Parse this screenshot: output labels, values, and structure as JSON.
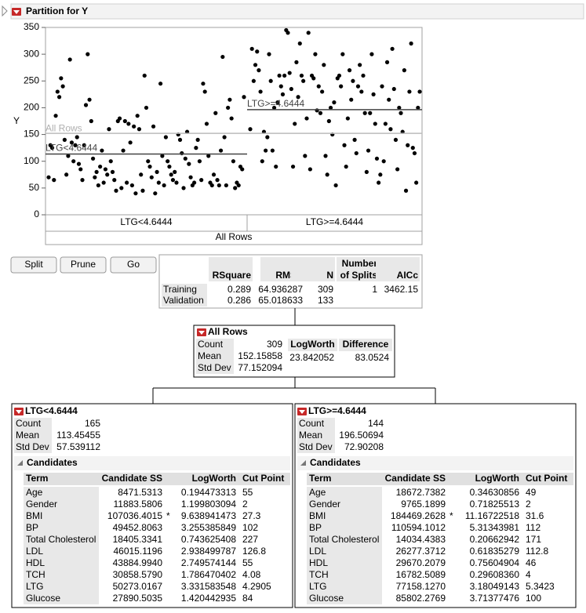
{
  "header": {
    "title": "Partition for Y"
  },
  "chart_data": {
    "type": "scatter",
    "ylabel": "Y",
    "ylim": [
      0,
      350
    ],
    "yticks": [
      0,
      50,
      100,
      150,
      200,
      250,
      300,
      350
    ],
    "color": "#000000",
    "groups": [
      {
        "values": [
          70,
          130,
          125,
          65,
          185,
          230,
          220,
          255,
          240,
          140,
          75,
          110,
          290,
          135,
          100,
          130,
          145,
          95,
          85,
          65,
          130,
          205,
          300,
          215,
          175,
          105,
          70,
          80,
          55,
          90,
          120,
          60,
          85,
          75,
          160,
          100,
          80,
          65,
          45,
          175,
          180,
          50,
          120,
          175,
          60,
          170,
          135,
          55,
          165,
          40,
          185,
          160,
          75,
          45,
          260,
          200,
          100,
          90,
          70,
          165,
          40,
          80,
          60,
          245,
          110,
          55,
          145,
          100,
          90,
          75,
          65,
          80,
          60,
          150,
          140,
          115,
          50,
          105,
          155,
          95,
          70,
          55,
          60,
          125,
          140,
          100,
          65,
          245,
          230,
          170,
          110,
          60,
          55,
          75,
          190,
          65,
          55,
          120,
          295,
          145,
          55,
          200,
          215,
          180,
          100,
          50,
          60,
          55,
          90,
          85,
          220
        ]
      },
      {
        "values": [
          160,
          310,
          250,
          280,
          305,
          270,
          230,
          100,
          155,
          120,
          145,
          300,
          250,
          120,
          200,
          90,
          210,
          260,
          240,
          225,
          260,
          345,
          340,
          265,
          235,
          90,
          170,
          285,
          220,
          320,
          260,
          250,
          110,
          180,
          340,
          85,
          260,
          255,
          300,
          195,
          240,
          190,
          230,
          280,
          110,
          75,
          175,
          200,
          150,
          210,
          55,
          255,
          260,
          240,
          300,
          130,
          90,
          180,
          270,
          215,
          250,
          140,
          115,
          240,
          280,
          230,
          260,
          190,
          80,
          120,
          190,
          300,
          225,
          170,
          105,
          60,
          75,
          240,
          100,
          170,
          285,
          215,
          160,
          310,
          235,
          140,
          85,
          200,
          190,
          155,
          270,
          45,
          130,
          230,
          320,
          125,
          115,
          60,
          200,
          230
        ]
      }
    ]
  },
  "buttons": [
    "Split",
    "Prune",
    "Go"
  ],
  "fit": {
    "columns": [
      "RSquare",
      "RMSE",
      "N",
      [
        "Number",
        "of Splits"
      ],
      "AICc"
    ],
    "rows": [
      {
        "label": "Training",
        "cells": [
          "0.289",
          "64.936287",
          "309",
          "1",
          "3462.15"
        ]
      },
      {
        "label": "Validation",
        "cells": [
          "0.286",
          "65.018633",
          "133"
        ]
      }
    ]
  },
  "root": {
    "title": "All Rows",
    "stats": [
      {
        "label": "Count",
        "value": 309
      },
      {
        "label": "Mean",
        "value": 152.15858
      },
      {
        "label": "Std Dev",
        "value": 77.152094
      }
    ],
    "columns": [
      "LogWorth",
      "Difference"
    ],
    "values": [
      "23.842052",
      "83.0524"
    ]
  },
  "nodes": [
    {
      "title": "LTG<4.6444",
      "stats": [
        {
          "label": "Count",
          "value": 165
        },
        {
          "label": "Mean",
          "value": 113.45455
        },
        {
          "label": "Std Dev",
          "value": 57.539112
        }
      ],
      "candidates": {
        "title": "Candidates",
        "columns": [
          "Term",
          "Candidate SS",
          "LogWorth",
          "Cut Point"
        ],
        "rows": [
          {
            "term": "Age",
            "ss": "8471.5313",
            "logworth": "0.194473313",
            "cut": "55"
          },
          {
            "term": "Gender",
            "ss": "11883.5806",
            "logworth": "1.199803094",
            "cut": "2"
          },
          {
            "term": "BMI",
            "ss": "107036.4015",
            "flag": "*",
            "logworth": "9.638941473",
            "cut": "27.3"
          },
          {
            "term": "BP",
            "ss": "49452.8063",
            "logworth": "3.255385849",
            "cut": "102"
          },
          {
            "term": "Total Cholesterol",
            "ss": "18405.3341",
            "logworth": "0.743625408",
            "cut": "227"
          },
          {
            "term": "LDL",
            "ss": "46015.1196",
            "logworth": "2.938499787",
            "cut": "126.8"
          },
          {
            "term": "HDL",
            "ss": "43884.9940",
            "logworth": "2.749574144",
            "cut": "55"
          },
          {
            "term": "TCH",
            "ss": "30858.5790",
            "logworth": "1.786470402",
            "cut": "4.08"
          },
          {
            "term": "LTG",
            "ss": "50273.0167",
            "logworth": "3.331583548",
            "cut": "4.2905"
          },
          {
            "term": "Glucose",
            "ss": "27890.5035",
            "logworth": "1.420442935",
            "cut": "84"
          }
        ]
      }
    },
    {
      "title": "LTG>=4.6444",
      "stats": [
        {
          "label": "Count",
          "value": 144
        },
        {
          "label": "Mean",
          "value": 196.50694
        },
        {
          "label": "Std Dev",
          "value": 72.90208
        }
      ],
      "candidates": {
        "title": "Candidates",
        "columns": [
          "Term",
          "Candidate SS",
          "LogWorth",
          "Cut Point"
        ],
        "rows": [
          {
            "term": "Age",
            "ss": "18672.7382",
            "logworth": "0.34630856",
            "cut": "49"
          },
          {
            "term": "Gender",
            "ss": "9765.1899",
            "logworth": "0.71825513",
            "cut": "2"
          },
          {
            "term": "BMI",
            "ss": "184469.2628",
            "flag": "*",
            "logworth": "11.16722518",
            "cut": "31.6"
          },
          {
            "term": "BP",
            "ss": "110594.1012",
            "logworth": "5.31343981",
            "cut": "112"
          },
          {
            "term": "Total Cholesterol",
            "ss": "14034.4383",
            "logworth": "0.20662942",
            "cut": "171"
          },
          {
            "term": "LDL",
            "ss": "26277.3712",
            "logworth": "0.61835279",
            "cut": "112.8"
          },
          {
            "term": "HDL",
            "ss": "29670.2079",
            "logworth": "0.75604904",
            "cut": "46"
          },
          {
            "term": "TCH",
            "ss": "16782.5089",
            "logworth": "0.29608360",
            "cut": "4"
          },
          {
            "term": "LTG",
            "ss": "77158.1270",
            "logworth": "3.18049143",
            "cut": "5.3423"
          },
          {
            "term": "Glucose",
            "ss": "85802.2769",
            "logworth": "3.71377476",
            "cut": "100"
          }
        ]
      }
    }
  ]
}
